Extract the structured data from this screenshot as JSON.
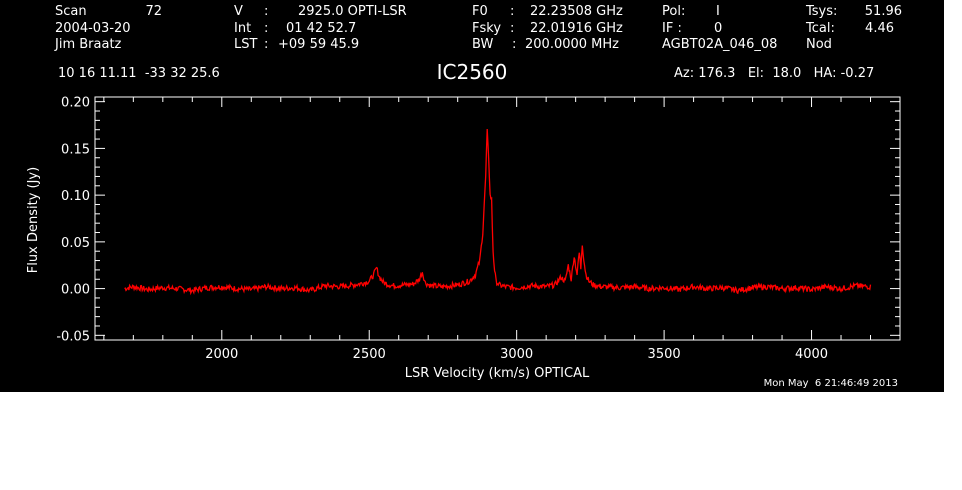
{
  "header": {
    "col1": {
      "line1_label": "Scan",
      "line1_value": "72",
      "line2": "2004-03-20",
      "line3": "Jim Braatz"
    },
    "col2": {
      "line1_label": "V",
      "line1_value": "2925.0 OPTI-LSR",
      "line2_label": "Int",
      "line2_value": "01 42 52.7",
      "line3_label": "LST",
      "line3_value": "+09 59 45.9"
    },
    "col3": {
      "line1_label": "F0",
      "line1_value": "22.23508 GHz",
      "line2_label": "Fsky",
      "line2_value": "22.01916 GHz",
      "line3_label": "BW",
      "line3_value": "200.0000 MHz"
    },
    "col4": {
      "line1_label": "Pol:",
      "line1_value": "I",
      "line2_label": "IF :",
      "line2_value": "0",
      "line3": "AGBT02A_046_08"
    },
    "col5": {
      "line1_label": "Tsys:",
      "line1_value": "51.96",
      "line2_label": "Tcal:",
      "line2_value": "4.46",
      "line3": "Nod"
    },
    "coords": "10 16 11.11  -33 32 25.6",
    "source": "IC2560",
    "pointing": "Az: 176.3   El:  18.0   HA: -0.27",
    "timestamp": "Mon May  6 21:46:49 2013"
  },
  "colors": {
    "background": "#000000",
    "axes": "#ffffff",
    "spectrum": "#ff0000"
  },
  "chart_data": {
    "type": "line",
    "title": "IC2560",
    "xlabel": "LSR Velocity (km/s) OPTICAL",
    "ylabel": "Flux Density (Jy)",
    "xlim": [
      1570,
      4300
    ],
    "ylim": [
      -0.055,
      0.205
    ],
    "xticks": [
      "2000",
      "2500",
      "3000",
      "3500",
      "4000"
    ],
    "yticks": [
      "-0.05",
      "0.00",
      "0.05",
      "0.10",
      "0.15",
      "0.20"
    ],
    "grid": false,
    "legend": "none",
    "series": [
      {
        "x": [
          1670,
          1700,
          1750,
          1800,
          1850,
          1900,
          1950,
          2000,
          2050,
          2100,
          2150,
          2200,
          2250,
          2300,
          2350,
          2400,
          2450,
          2480,
          2500,
          2515,
          2525,
          2535,
          2550,
          2580,
          2620,
          2650,
          2670,
          2680,
          2690,
          2710,
          2750,
          2800,
          2840,
          2860,
          2875,
          2885,
          2895,
          2900,
          2905,
          2910,
          2915,
          2920,
          2925,
          2930,
          2940,
          2960,
          3000,
          3050,
          3100,
          3130,
          3150,
          3165,
          3175,
          3185,
          3195,
          3205,
          3212,
          3218,
          3222,
          3228,
          3235,
          3245,
          3260,
          3290,
          3350,
          3400,
          3450,
          3500,
          3550,
          3600,
          3650,
          3700,
          3750,
          3800,
          3850,
          3900,
          3950,
          4000,
          4050,
          4100,
          4150,
          4200
        ],
        "y": [
          0.0,
          0.002,
          -0.001,
          0.001,
          0.0,
          -0.002,
          0.001,
          0.002,
          0.0,
          -0.001,
          0.002,
          0.0,
          0.001,
          -0.002,
          0.003,
          0.002,
          0.004,
          0.006,
          0.008,
          0.015,
          0.022,
          0.012,
          0.006,
          0.003,
          0.004,
          0.005,
          0.01,
          0.018,
          0.006,
          0.003,
          0.002,
          0.004,
          0.008,
          0.015,
          0.03,
          0.06,
          0.12,
          0.168,
          0.14,
          0.1,
          0.095,
          0.04,
          0.02,
          0.008,
          0.004,
          0.002,
          0.001,
          0.003,
          0.002,
          0.004,
          0.012,
          0.008,
          0.025,
          0.01,
          0.035,
          0.015,
          0.04,
          0.02,
          0.05,
          0.03,
          0.015,
          0.008,
          0.004,
          0.002,
          0.001,
          0.002,
          0.0,
          0.001,
          -0.001,
          0.002,
          0.0,
          0.001,
          -0.002,
          0.001,
          0.002,
          0.0,
          0.001,
          -0.001,
          0.002,
          0.0,
          0.003,
          0.002
        ]
      }
    ]
  }
}
